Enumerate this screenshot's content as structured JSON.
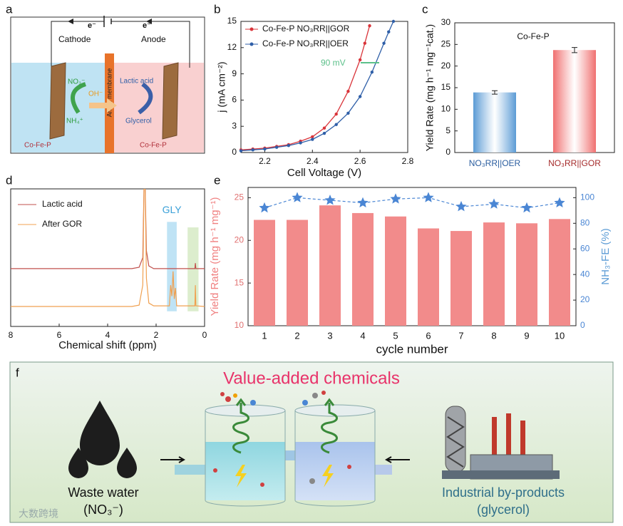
{
  "panel_a": {
    "panel": "a",
    "electron_left": "e⁻",
    "electron_right": "e⁻",
    "cathode": "Cathode",
    "anode": "Anode",
    "nitrate": "NO₃⁻",
    "ammonium": "NH₄⁺",
    "hydroxide": "OH⁻",
    "membrane": "Anion membrane",
    "lactic_acid": "Lactic acid",
    "glycerol": "Glycerol",
    "catalyst_left": "Co-Fe-P",
    "catalyst_right": "Co-Fe-P"
  },
  "chart_data": [
    {
      "panel": "b",
      "type": "line",
      "x_label": "Cell Voltage (V)",
      "y_label": "j (mA cm⁻²)",
      "annotation": "90 mV",
      "xlim": [
        2.1,
        2.8
      ],
      "xticks": [
        2.2,
        2.4,
        2.6,
        2.8
      ],
      "ylim": [
        0,
        15
      ],
      "yticks": [
        0,
        3,
        6,
        9,
        12,
        15
      ],
      "legend": "upper left",
      "series": [
        {
          "name": "Co-Fe-P NO₃RR||GOR",
          "color": "#d9343a",
          "x": [
            2.1,
            2.15,
            2.2,
            2.25,
            2.3,
            2.35,
            2.4,
            2.45,
            2.5,
            2.55,
            2.6,
            2.62,
            2.64
          ],
          "values": [
            0.3,
            0.4,
            0.5,
            0.7,
            0.9,
            1.3,
            1.8,
            2.8,
            4.4,
            7.0,
            10.6,
            12.5,
            14.5
          ]
        },
        {
          "name": "Co-Fe-P NO₃RR||OER",
          "color": "#2f5fa8",
          "x": [
            2.1,
            2.15,
            2.2,
            2.25,
            2.3,
            2.35,
            2.4,
            2.45,
            2.5,
            2.55,
            2.6,
            2.65,
            2.7,
            2.72,
            2.74
          ],
          "values": [
            0.2,
            0.3,
            0.4,
            0.6,
            0.8,
            1.1,
            1.5,
            2.2,
            3.2,
            4.5,
            6.4,
            9.2,
            12.5,
            13.8,
            15.0
          ]
        }
      ]
    },
    {
      "panel": "c",
      "type": "bar",
      "title": "Co-Fe-P",
      "y_label": "Yield Rate (mg h⁻¹ mg⁻¹cat.)",
      "categories": [
        "NO₃RR||OER",
        "NO₃RR||GOR"
      ],
      "values": [
        13.9,
        23.7
      ],
      "errors": [
        0.4,
        0.6
      ],
      "colors": [
        "#5b9bd5",
        "#f07070"
      ],
      "label_colors": [
        "#2a5d9f",
        "#a52a2a"
      ],
      "ylim": [
        0,
        30
      ],
      "yticks": [
        0,
        5,
        10,
        15,
        20,
        25,
        30
      ]
    },
    {
      "panel": "d",
      "type": "spectrum",
      "x_label": "Chemical shift (ppm)",
      "xlim": [
        8,
        0
      ],
      "xticks": [
        8,
        6,
        4,
        2,
        0
      ],
      "ylim": [
        0,
        1
      ],
      "bands": [
        {
          "range": [
            1.55,
            1.15
          ],
          "yrange": [
            0.11,
            0.76
          ],
          "color": "#bfe3f5",
          "label": "GLY"
        },
        {
          "range": [
            0.7,
            0.25
          ],
          "yrange": [
            0.11,
            0.72
          ],
          "color": "#dcedcd"
        }
      ],
      "series": [
        {
          "name": "Lactic acid",
          "color": "#c0504d",
          "x": [
            8,
            3,
            2.7,
            2.55,
            2.5,
            2.45,
            2.4,
            2.3,
            2.1,
            1.5,
            0.4,
            0.38,
            0.36,
            0
          ],
          "values": [
            0.42,
            0.42,
            0.43,
            0.5,
            1.0,
            1.0,
            0.55,
            0.44,
            0.42,
            0.42,
            0.42,
            0.46,
            0.42,
            0.42
          ]
        },
        {
          "name": "After GOR",
          "color": "#f0a050",
          "x": [
            8,
            3,
            2.7,
            2.55,
            2.5,
            2.45,
            2.4,
            2.3,
            2.1,
            1.45,
            1.4,
            1.35,
            1.3,
            1.25,
            1.2,
            1.15,
            0.4,
            0.38,
            0.36,
            0
          ],
          "values": [
            0.145,
            0.145,
            0.155,
            0.3,
            1.0,
            1.0,
            0.35,
            0.17,
            0.15,
            0.15,
            0.3,
            0.22,
            0.4,
            0.2,
            0.28,
            0.15,
            0.15,
            0.3,
            0.15,
            0.145
          ]
        }
      ]
    },
    {
      "panel": "e",
      "type": "bar_line",
      "x_label": "cycle number",
      "y_label": "Yield Rate (mg h⁻¹ mg⁻¹)",
      "y2_label": "NH₃-FE (%)",
      "categories": [
        "1",
        "2",
        "3",
        "4",
        "5",
        "6",
        "7",
        "8",
        "9",
        "10"
      ],
      "ylim": [
        10,
        26.2
      ],
      "yticks": [
        10,
        15,
        20,
        25
      ],
      "y2lim": [
        0,
        108
      ],
      "y2ticks": [
        0,
        20,
        40,
        60,
        80,
        100
      ],
      "series": [
        {
          "type": "bar",
          "color": "#f28b8b",
          "values": [
            22.4,
            22.4,
            24.1,
            23.2,
            22.8,
            21.4,
            21.1,
            22.1,
            22.0,
            22.5
          ]
        },
        {
          "type": "line",
          "axis": "y2",
          "color": "#4a86d4",
          "values": [
            92,
            100,
            98,
            96,
            99,
            100,
            93,
            95,
            92,
            96
          ]
        }
      ]
    }
  ],
  "panel_f": {
    "panel": "f",
    "title": "Value-added chemicals",
    "left_label": "Waste water",
    "left_sub": "(NO₃⁻)",
    "right_label": "Industrial by-products",
    "right_sub": "(glycerol)"
  },
  "watermark": "大数跨境"
}
